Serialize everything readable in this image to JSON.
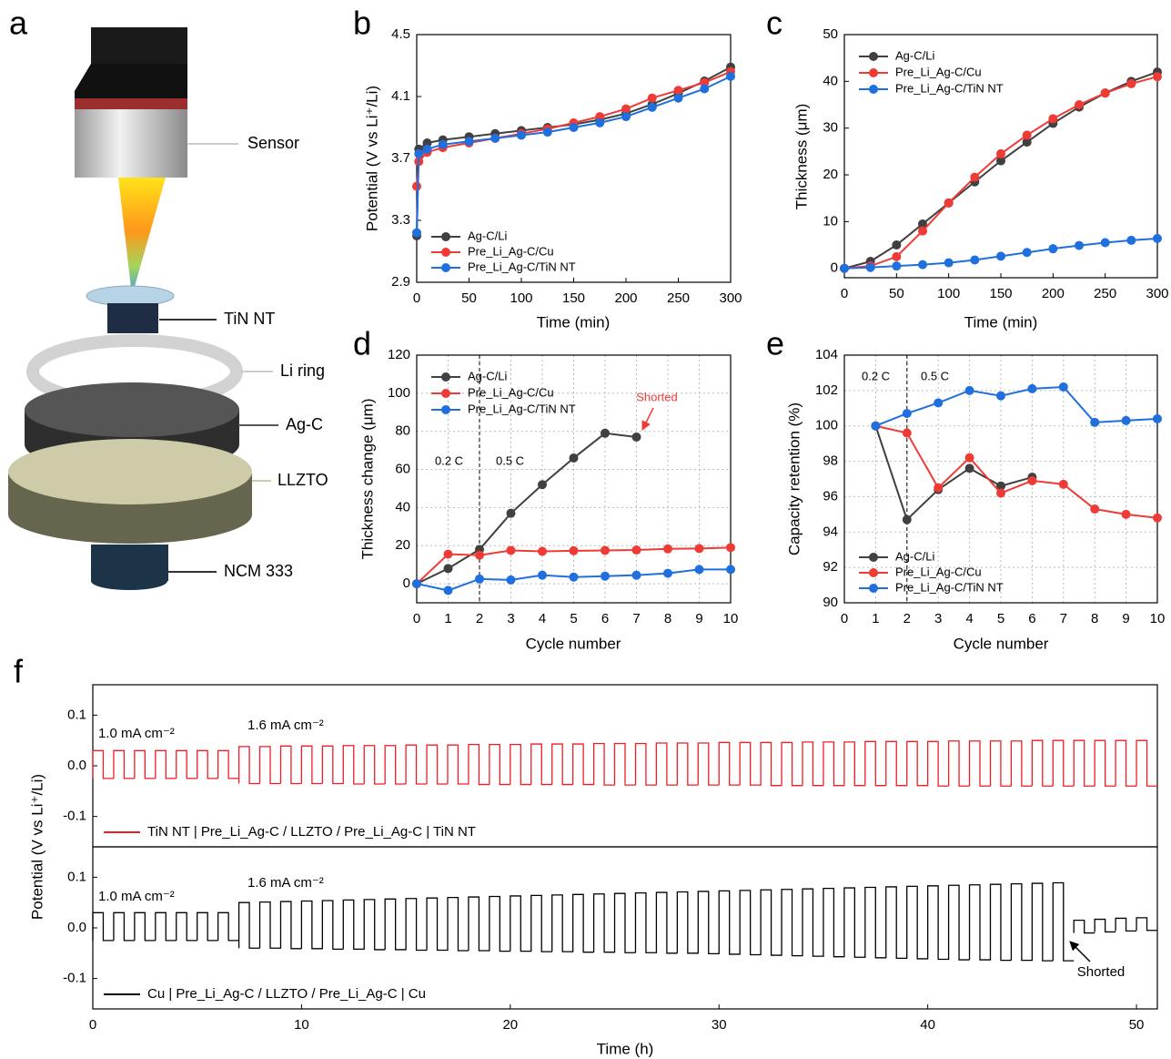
{
  "schematic": {
    "label": "a",
    "parts": [
      "Sensor",
      "TiN NT",
      "Li ring",
      "Ag-C",
      "LLZTO",
      "NCM 333"
    ]
  },
  "chart_data": [
    {
      "type": "line",
      "label": "b",
      "xlabel": "Time (min)",
      "ylabel": "Potential (V vs Li⁺/Li)",
      "xlim": [
        0,
        300
      ],
      "xticks": [
        0,
        50,
        100,
        150,
        200,
        250,
        300
      ],
      "ylim": [
        2.9,
        4.5
      ],
      "yticks": [
        2.9,
        3.3,
        3.7,
        4.1,
        4.5
      ],
      "grid": false,
      "legend": "lower left",
      "x": [
        0,
        2,
        10,
        25,
        50,
        75,
        100,
        125,
        150,
        175,
        200,
        225,
        250,
        275,
        300
      ],
      "series": [
        {
          "name": "Ag-C/Li",
          "color": "#404040",
          "values": [
            3.2,
            3.76,
            3.8,
            3.82,
            3.84,
            3.86,
            3.88,
            3.9,
            3.92,
            3.95,
            3.99,
            4.05,
            4.12,
            4.2,
            4.29
          ]
        },
        {
          "name": "Pre_Li_Ag-C/Cu",
          "color": "#ef3b36",
          "values": [
            3.52,
            3.68,
            3.74,
            3.77,
            3.8,
            3.83,
            3.86,
            3.89,
            3.93,
            3.97,
            4.02,
            4.09,
            4.14,
            4.19,
            4.26
          ]
        },
        {
          "name": "Pre_Li_Ag-C/TiN NT",
          "color": "#1f6fde",
          "values": [
            3.22,
            3.73,
            3.76,
            3.79,
            3.81,
            3.83,
            3.85,
            3.87,
            3.9,
            3.93,
            3.97,
            4.03,
            4.09,
            4.15,
            4.23
          ]
        }
      ]
    },
    {
      "type": "line",
      "label": "c",
      "xlabel": "Time (min)",
      "ylabel": "Thickness (μm)",
      "xlim": [
        0,
        300
      ],
      "xticks": [
        0,
        50,
        100,
        150,
        200,
        250,
        300
      ],
      "ylim": [
        -2,
        50
      ],
      "yticks": [
        0,
        10,
        20,
        30,
        40,
        50
      ],
      "grid": false,
      "legend": "upper left",
      "x": [
        0,
        25,
        50,
        75,
        100,
        125,
        150,
        175,
        200,
        225,
        250,
        275,
        300
      ],
      "series": [
        {
          "name": "Ag-C/Li",
          "color": "#404040",
          "values": [
            0,
            1.5,
            5,
            9.5,
            14,
            18.5,
            23,
            27,
            31,
            34.5,
            37.5,
            40,
            42
          ]
        },
        {
          "name": "Pre_Li_Ag-C/Cu",
          "color": "#ef3b36",
          "values": [
            0,
            0.5,
            2.5,
            8,
            14,
            19.5,
            24.5,
            28.5,
            32,
            35,
            37.5,
            39.5,
            41
          ]
        },
        {
          "name": "Pre_Li_Ag-C/TiN NT",
          "color": "#1f6fde",
          "values": [
            0,
            0.2,
            0.5,
            0.8,
            1.2,
            1.8,
            2.6,
            3.4,
            4.2,
            4.9,
            5.5,
            6,
            6.4
          ]
        }
      ]
    },
    {
      "type": "line",
      "label": "d",
      "xlabel": "Cycle number",
      "ylabel": "Thickness change (μm)",
      "xlim": [
        0,
        10
      ],
      "xticks": [
        0,
        1,
        2,
        3,
        4,
        5,
        6,
        7,
        8,
        9,
        10
      ],
      "ylim": [
        -10,
        120
      ],
      "yticks": [
        0,
        20,
        40,
        60,
        80,
        100,
        120
      ],
      "grid": true,
      "legend": "upper left",
      "vline": 2,
      "annotations": [
        {
          "text": "0.2 C"
        },
        {
          "text": "0.5 C"
        },
        {
          "text": "Shorted",
          "color": "#ef3b36"
        }
      ],
      "x": [
        0,
        1,
        2,
        3,
        4,
        5,
        6,
        7,
        8,
        9,
        10
      ],
      "series": [
        {
          "name": "Ag-C/Li",
          "color": "#404040",
          "values": [
            0,
            8,
            18,
            37,
            52,
            66,
            79,
            77,
            null,
            null,
            null
          ]
        },
        {
          "name": "Pre_Li_Ag-C/Cu",
          "color": "#ef3b36",
          "values": [
            0,
            15.5,
            15,
            17.5,
            17,
            17.3,
            17.5,
            17.7,
            18.3,
            18.5,
            19
          ]
        },
        {
          "name": "Pre_Li_Ag-C/TiN NT",
          "color": "#1f6fde",
          "values": [
            0,
            -3.5,
            2.5,
            2,
            4.5,
            3.5,
            4,
            4.5,
            5.5,
            7.5,
            7.5
          ]
        }
      ]
    },
    {
      "type": "line",
      "label": "e",
      "xlabel": "Cycle number",
      "ylabel": "Capacity retention (%)",
      "xlim": [
        0,
        10
      ],
      "xticks": [
        0,
        1,
        2,
        3,
        4,
        5,
        6,
        7,
        8,
        9,
        10
      ],
      "ylim": [
        90,
        104
      ],
      "yticks": [
        90,
        92,
        94,
        96,
        98,
        100,
        102,
        104
      ],
      "grid": true,
      "legend": "lower left",
      "vline": 2,
      "annotations": [
        {
          "text": "0.2 C"
        },
        {
          "text": "0.5 C"
        }
      ],
      "x": [
        0,
        1,
        2,
        3,
        4,
        5,
        6,
        7,
        8,
        9,
        10
      ],
      "series": [
        {
          "name": "Ag-C/Li",
          "color": "#404040",
          "values": [
            null,
            100,
            94.7,
            96.4,
            97.6,
            96.6,
            97.1,
            null,
            null,
            null,
            null
          ]
        },
        {
          "name": "Pre_Li_Ag-C/Cu",
          "color": "#ef3b36",
          "values": [
            null,
            100,
            99.6,
            96.5,
            98.2,
            96.2,
            96.9,
            96.7,
            95.3,
            95,
            94.8
          ]
        },
        {
          "name": "Pre_Li_Ag-C/TiN NT",
          "color": "#1f6fde",
          "values": [
            null,
            100,
            100.7,
            101.3,
            102,
            101.7,
            102.1,
            102.2,
            100.2,
            100.3,
            100.4
          ]
        }
      ]
    },
    {
      "type": "waveform",
      "label": "f",
      "ylabel": "Potential (V vs Li⁺/Li)",
      "xlim": [
        0,
        51
      ],
      "ylim": [
        -0.16,
        0.16
      ],
      "yticks": [
        -0.1,
        {
          "value": 0,
          "label": "0.0"
        },
        0.1
      ],
      "grid": false,
      "legend": "lower left",
      "annotations": [
        {
          "text": "1.0 mA cm⁻²"
        },
        {
          "text": "1.6 mA cm⁻²"
        }
      ],
      "x": [
        0,
        1,
        2,
        3,
        4,
        5,
        6,
        7,
        8,
        9,
        10,
        11,
        12,
        13,
        14,
        15,
        16,
        17,
        18,
        19,
        20,
        21,
        22,
        23,
        24,
        25,
        26,
        27,
        28,
        29,
        30,
        31,
        32,
        33,
        34,
        35,
        36,
        37,
        38,
        39,
        40,
        41,
        42,
        43,
        44,
        45,
        46,
        47,
        48,
        49,
        50
      ],
      "series": [
        {
          "name": "TiN NT | Pre_Li_Ag-C / LLZTO / Pre_Li_Ag-C | TiN NT",
          "color": "#ef1c24",
          "values": [
            0.03,
            0.03,
            0.03,
            0.03,
            0.03,
            0.03,
            0.03,
            0.038,
            0.038,
            0.039,
            0.039,
            0.039,
            0.04,
            0.04,
            0.04,
            0.041,
            0.041,
            0.041,
            0.042,
            0.042,
            0.042,
            0.043,
            0.043,
            0.043,
            0.044,
            0.044,
            0.044,
            0.045,
            0.045,
            0.045,
            0.046,
            0.046,
            0.046,
            0.046,
            0.047,
            0.047,
            0.047,
            0.048,
            0.048,
            0.048,
            0.048,
            0.049,
            0.049,
            0.049,
            0.049,
            0.05,
            0.05,
            0.05,
            0.05,
            0.05,
            0.05
          ],
          "lower": [
            -0.025,
            -0.025,
            -0.025,
            -0.025,
            -0.025,
            -0.025,
            -0.025,
            -0.035,
            -0.035,
            -0.035,
            -0.035,
            -0.035,
            -0.036,
            -0.036,
            -0.036,
            -0.036,
            -0.036,
            -0.036,
            -0.037,
            -0.037,
            -0.037,
            -0.037,
            -0.037,
            -0.037,
            -0.038,
            -0.038,
            -0.038,
            -0.038,
            -0.038,
            -0.038,
            -0.038,
            -0.038,
            -0.039,
            -0.039,
            -0.039,
            -0.039,
            -0.039,
            -0.039,
            -0.039,
            -0.039,
            -0.04,
            -0.04,
            -0.04,
            -0.04,
            -0.04,
            -0.04,
            -0.04,
            -0.04,
            -0.04,
            -0.04,
            -0.04
          ]
        }
      ]
    },
    {
      "type": "waveform",
      "xlabel": "Time (h)",
      "xlim": [
        0,
        51
      ],
      "xticks": [
        0,
        10,
        20,
        30,
        40,
        50
      ],
      "ylim": [
        -0.16,
        0.16
      ],
      "yticks": [
        -0.1,
        {
          "value": 0,
          "label": "0.0"
        },
        0.1
      ],
      "grid": false,
      "legend": "lower left",
      "annotations": [
        {
          "text": "1.0 mA cm⁻²"
        },
        {
          "text": "1.6 mA cm⁻²"
        },
        {
          "text": "Shorted"
        }
      ],
      "x": [
        0,
        1,
        2,
        3,
        4,
        5,
        6,
        7,
        8,
        9,
        10,
        11,
        12,
        13,
        14,
        15,
        16,
        17,
        18,
        19,
        20,
        21,
        22,
        23,
        24,
        25,
        26,
        27,
        28,
        29,
        30,
        31,
        32,
        33,
        34,
        35,
        36,
        37,
        38,
        39,
        40,
        41,
        42,
        43,
        44,
        45,
        46,
        47,
        48,
        49,
        50
      ],
      "series": [
        {
          "name": "Cu | Pre_Li_Ag-C / LLZTO / Pre_Li_Ag-C | Cu",
          "color": "#000000",
          "values": [
            0.03,
            0.03,
            0.03,
            0.03,
            0.03,
            0.03,
            0.03,
            0.05,
            0.051,
            0.052,
            0.053,
            0.054,
            0.055,
            0.056,
            0.057,
            0.058,
            0.059,
            0.06,
            0.061,
            0.062,
            0.063,
            0.064,
            0.065,
            0.066,
            0.067,
            0.068,
            0.069,
            0.07,
            0.071,
            0.072,
            0.073,
            0.074,
            0.075,
            0.076,
            0.077,
            0.078,
            0.079,
            0.08,
            0.081,
            0.082,
            0.083,
            0.084,
            0.085,
            0.086,
            0.087,
            0.088,
            0.089,
            0.015,
            0.017,
            0.019,
            0.02
          ],
          "lower": [
            -0.025,
            -0.025,
            -0.025,
            -0.025,
            -0.025,
            -0.025,
            -0.025,
            -0.04,
            -0.04,
            -0.041,
            -0.041,
            -0.042,
            -0.042,
            -0.043,
            -0.043,
            -0.044,
            -0.044,
            -0.045,
            -0.045,
            -0.046,
            -0.046,
            -0.047,
            -0.047,
            -0.048,
            -0.048,
            -0.049,
            -0.049,
            -0.05,
            -0.05,
            -0.051,
            -0.052,
            -0.053,
            -0.054,
            -0.055,
            -0.056,
            -0.057,
            -0.058,
            -0.059,
            -0.06,
            -0.061,
            -0.062,
            -0.063,
            -0.063,
            -0.064,
            -0.064,
            -0.065,
            -0.065,
            -0.01,
            -0.008,
            -0.006,
            -0.005
          ]
        }
      ]
    }
  ]
}
